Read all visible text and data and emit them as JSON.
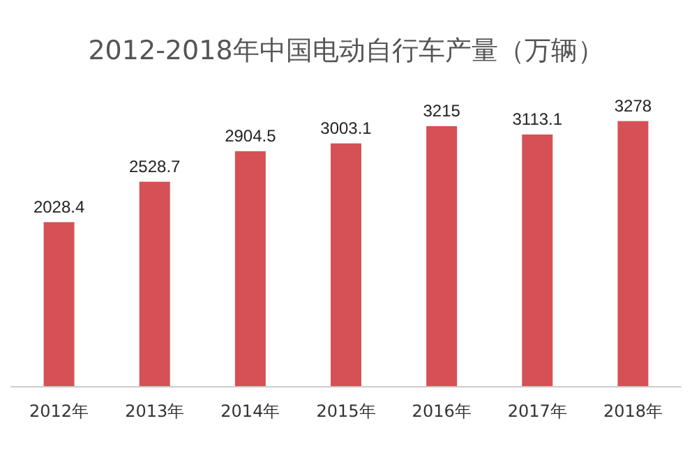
{
  "chart_data": {
    "type": "bar",
    "title": "2012-2018年中国电动自行车产量（万辆）",
    "categories": [
      "2012年",
      "2013年",
      "2014年",
      "2015年",
      "2016年",
      "2017年",
      "2018年"
    ],
    "values": [
      2028.4,
      2528.7,
      2904.5,
      3003.1,
      3215,
      3113.1,
      3278
    ],
    "color": "#d65155",
    "data_labels": true,
    "grid": false,
    "tick_labels": "x"
  }
}
